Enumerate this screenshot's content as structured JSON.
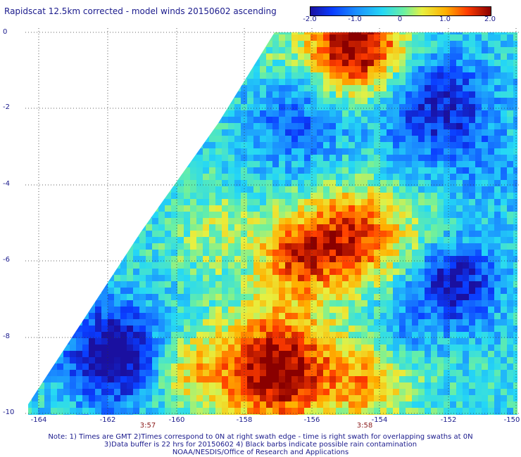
{
  "title": "Rapidscat 12.5km corrected - model winds 20150602 ascending",
  "colorbar": {
    "ticks": [
      "-2.0",
      "-1.0",
      "0",
      "1.0",
      "2.0"
    ],
    "range": [
      -2.0,
      2.0
    ]
  },
  "axes": {
    "y_ticks": [
      "0",
      "-2",
      "-4",
      "-6",
      "-8",
      "-10"
    ],
    "x_ticks": [
      "-164",
      "-162",
      "-160",
      "-158",
      "-156",
      "-154",
      "-152",
      "-150"
    ]
  },
  "times": [
    "3:57",
    "3:58"
  ],
  "notes": [
    "Note: 1) Times are GMT 2)Times correspond to 0N at right swath edge - time is right swath for overlapping swaths at 0N",
    "3)Data buffer is 22 hrs for 20150602 4) Black barbs indicate possible rain contamination",
    "NOAA/NESDIS/Office of Research and Applications"
  ],
  "colors": {
    "text": "#1a1a8c",
    "time": "#8a1a1a",
    "grid": "#333333"
  }
}
